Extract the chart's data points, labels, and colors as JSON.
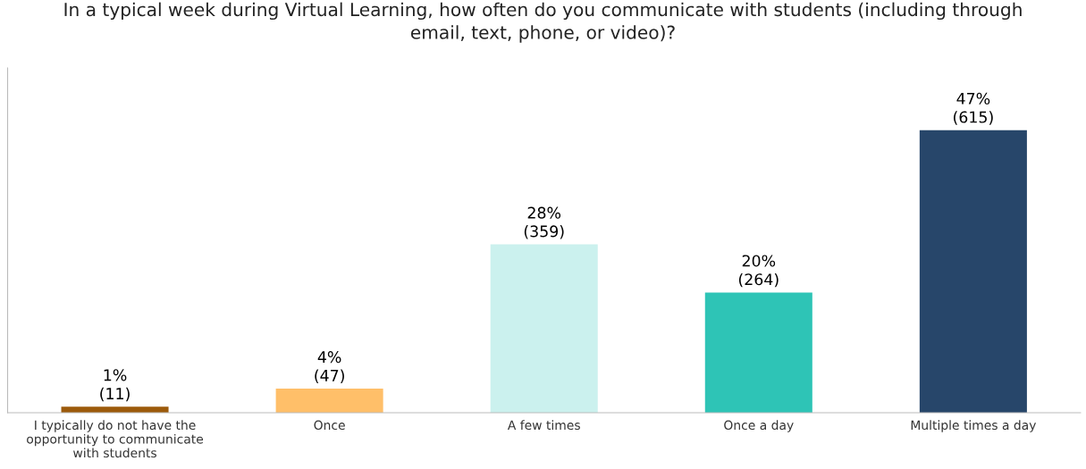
{
  "chart_data": {
    "type": "bar",
    "title": "In a typical week during Virtual Learning, how often do you communicate with students (including through\nemail, text, phone, or video)?",
    "categories": [
      "I typically do not have the\nopportunity to communicate\nwith students",
      "Once",
      "A few times",
      "Once a day",
      "Multiple times a day"
    ],
    "values": [
      1,
      4,
      28,
      20,
      47
    ],
    "colors": [
      "#9c5a0b",
      "#ffbf69",
      "#cbf1ee",
      "#2ec4b6",
      "#27466a"
    ],
    "value_labels": [
      "1%\n(11)",
      "4%\n(47)",
      "28%\n(359)",
      "20%\n(264)",
      "47%\n(615)"
    ],
    "grid": false,
    "legend": false
  }
}
